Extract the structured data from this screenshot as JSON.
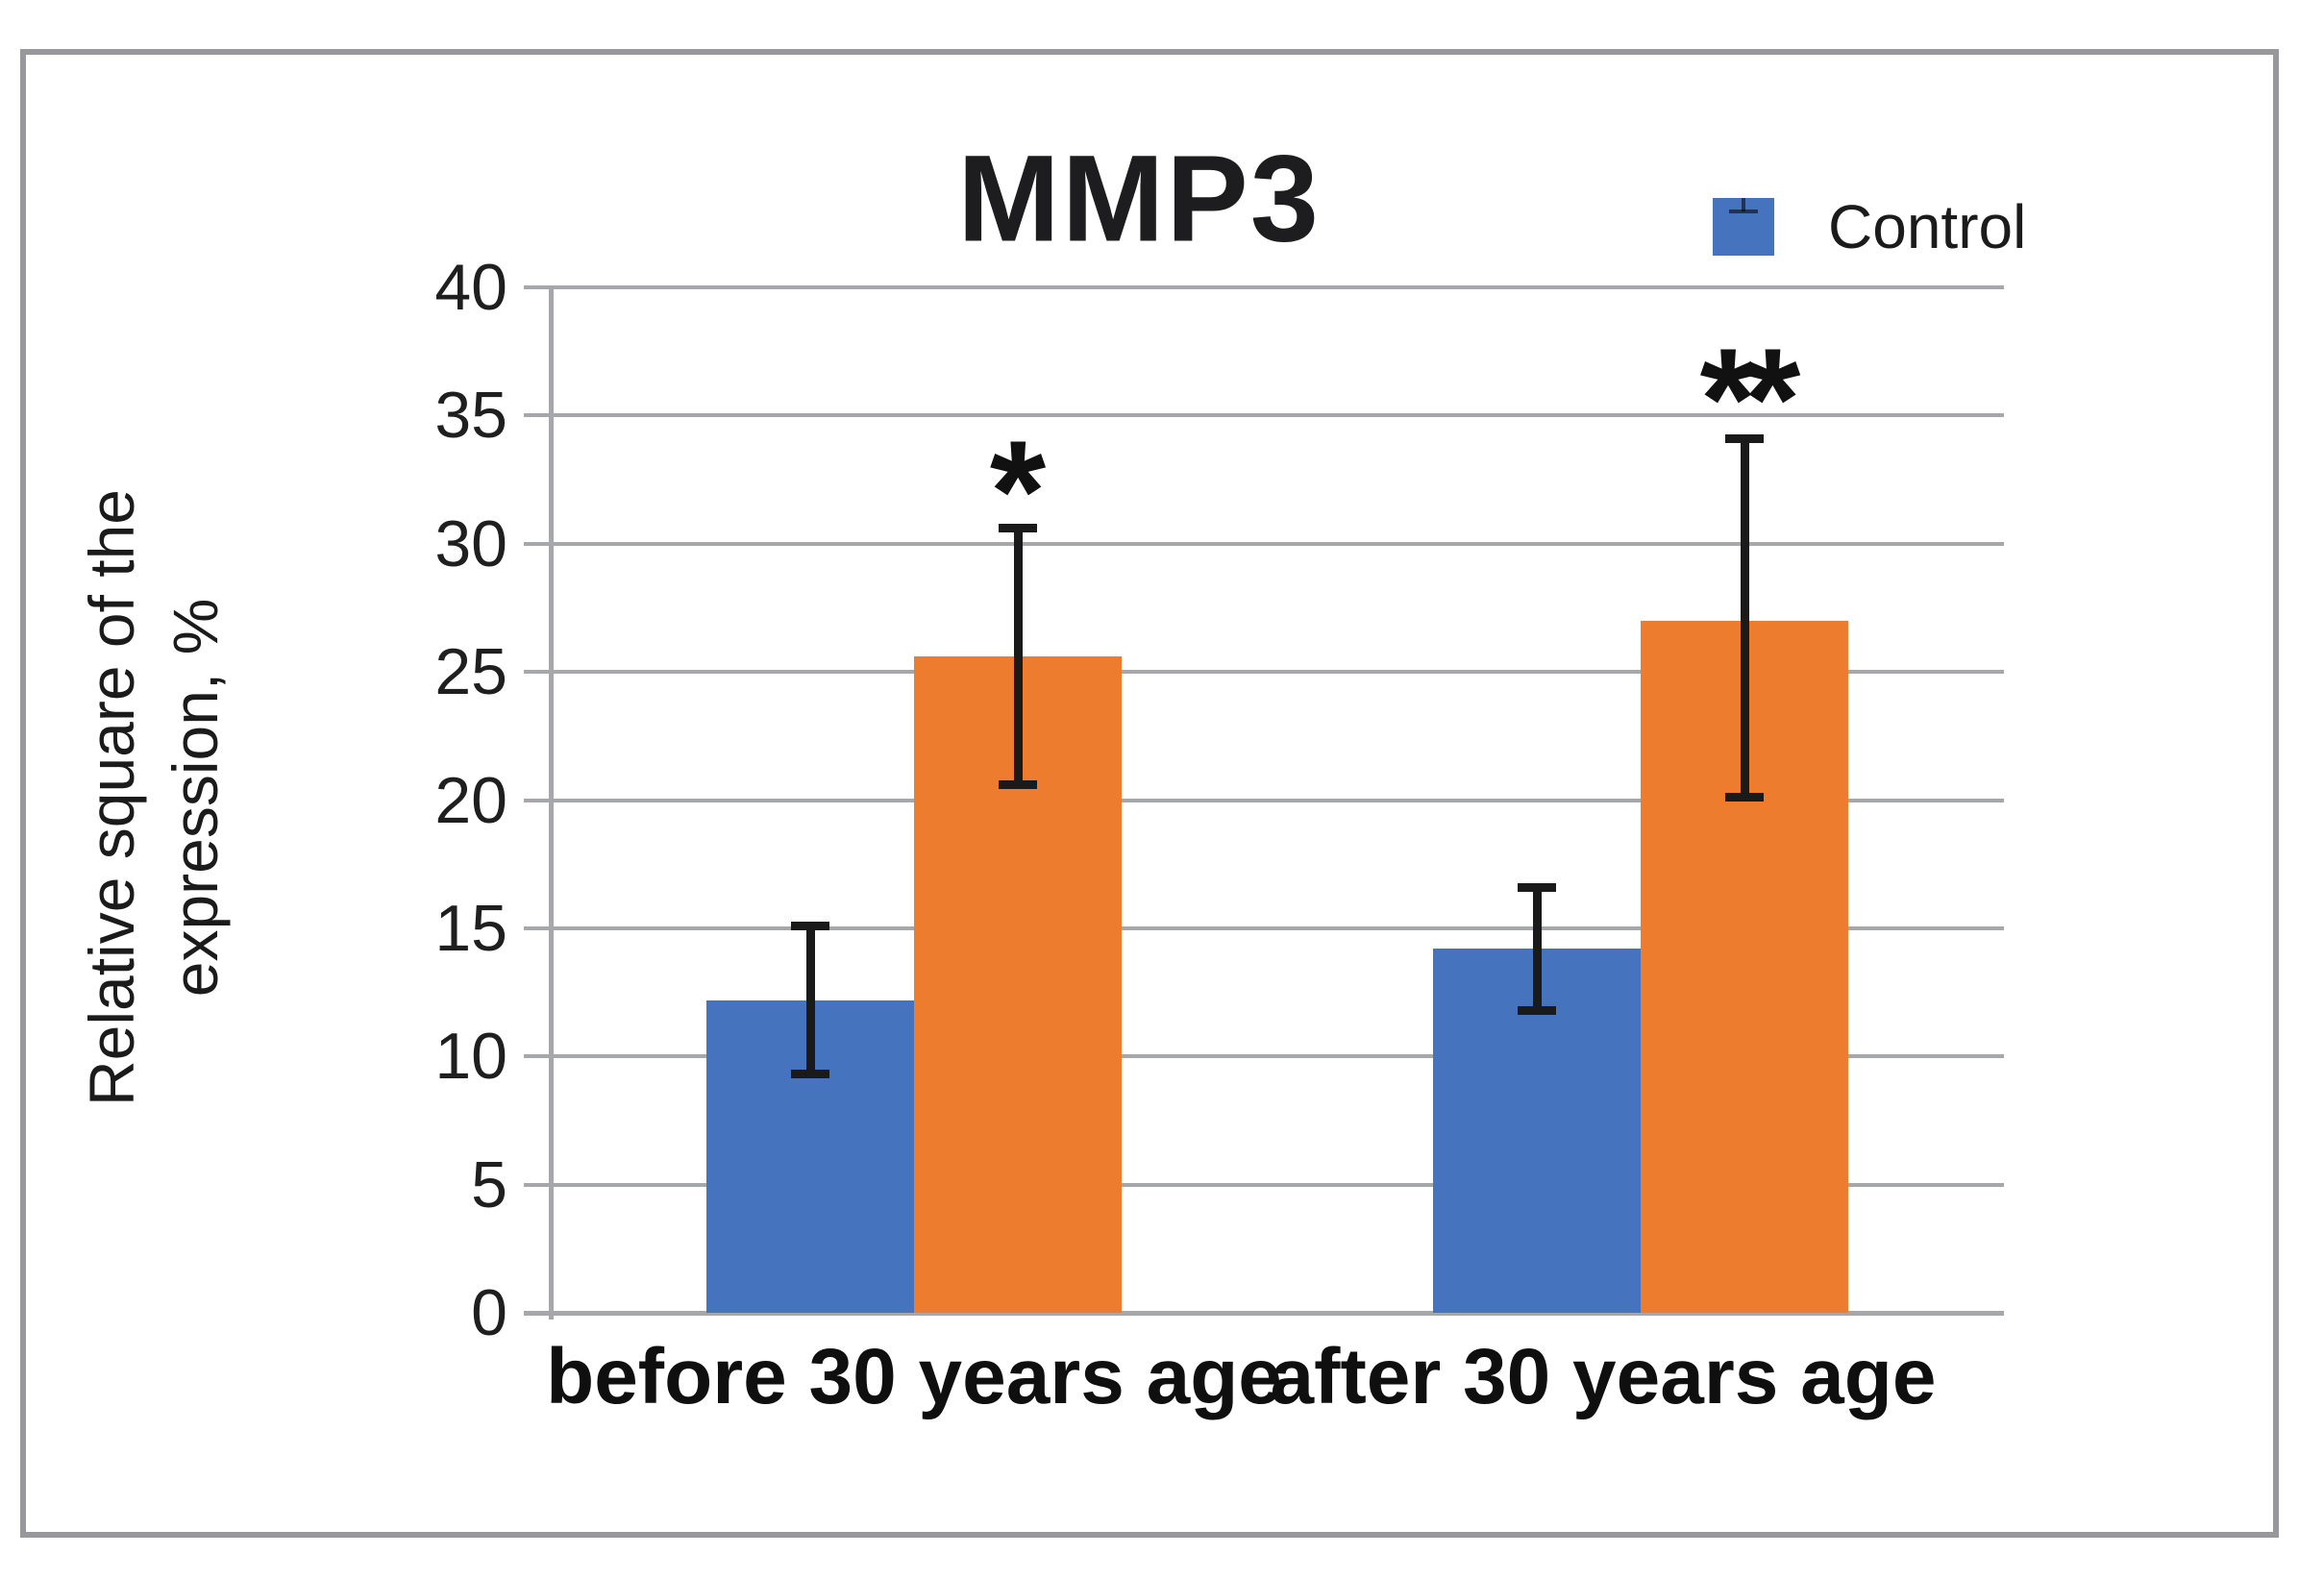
{
  "chart_data": {
    "type": "bar",
    "title": "MMP3",
    "y_axis_label_lines": [
      "Relative square of the",
      "expression, %"
    ],
    "y_axis_label": "Relative square of the expression, %",
    "categories": [
      "before 30 years age",
      "after 30 years  age"
    ],
    "ylim": [
      0,
      40
    ],
    "ytick_step": 5,
    "grid": true,
    "legend": {
      "position": "top-right",
      "entries": [
        {
          "label": "Control",
          "color": "#4673bd"
        }
      ]
    },
    "series": [
      {
        "name": "Control",
        "color": "#4673bd",
        "values": [
          12.2,
          14.2
        ],
        "error_low": [
          9.3,
          11.8
        ],
        "error_high": [
          15.1,
          16.6
        ]
      },
      {
        "name": "",
        "color": "#ee7c2e",
        "values": [
          25.6,
          27.0
        ],
        "error_low": [
          20.6,
          20.1
        ],
        "error_high": [
          30.6,
          34.1
        ]
      }
    ],
    "annotations": [
      {
        "text": "*",
        "category_index": 0,
        "series_index": 1,
        "y": 33.0
      },
      {
        "text": "**",
        "category_index": 1,
        "series_index": 1,
        "y": 36.6
      }
    ],
    "colors": {
      "grid": "#a5a7aa",
      "axis": "#a5a7aa",
      "figure_border": "#98989c",
      "blue_bar": "#4673bd",
      "orange_bar": "#ee7c2e",
      "error_bar": "#1a1a1a",
      "text": "#1b1b1b"
    }
  }
}
